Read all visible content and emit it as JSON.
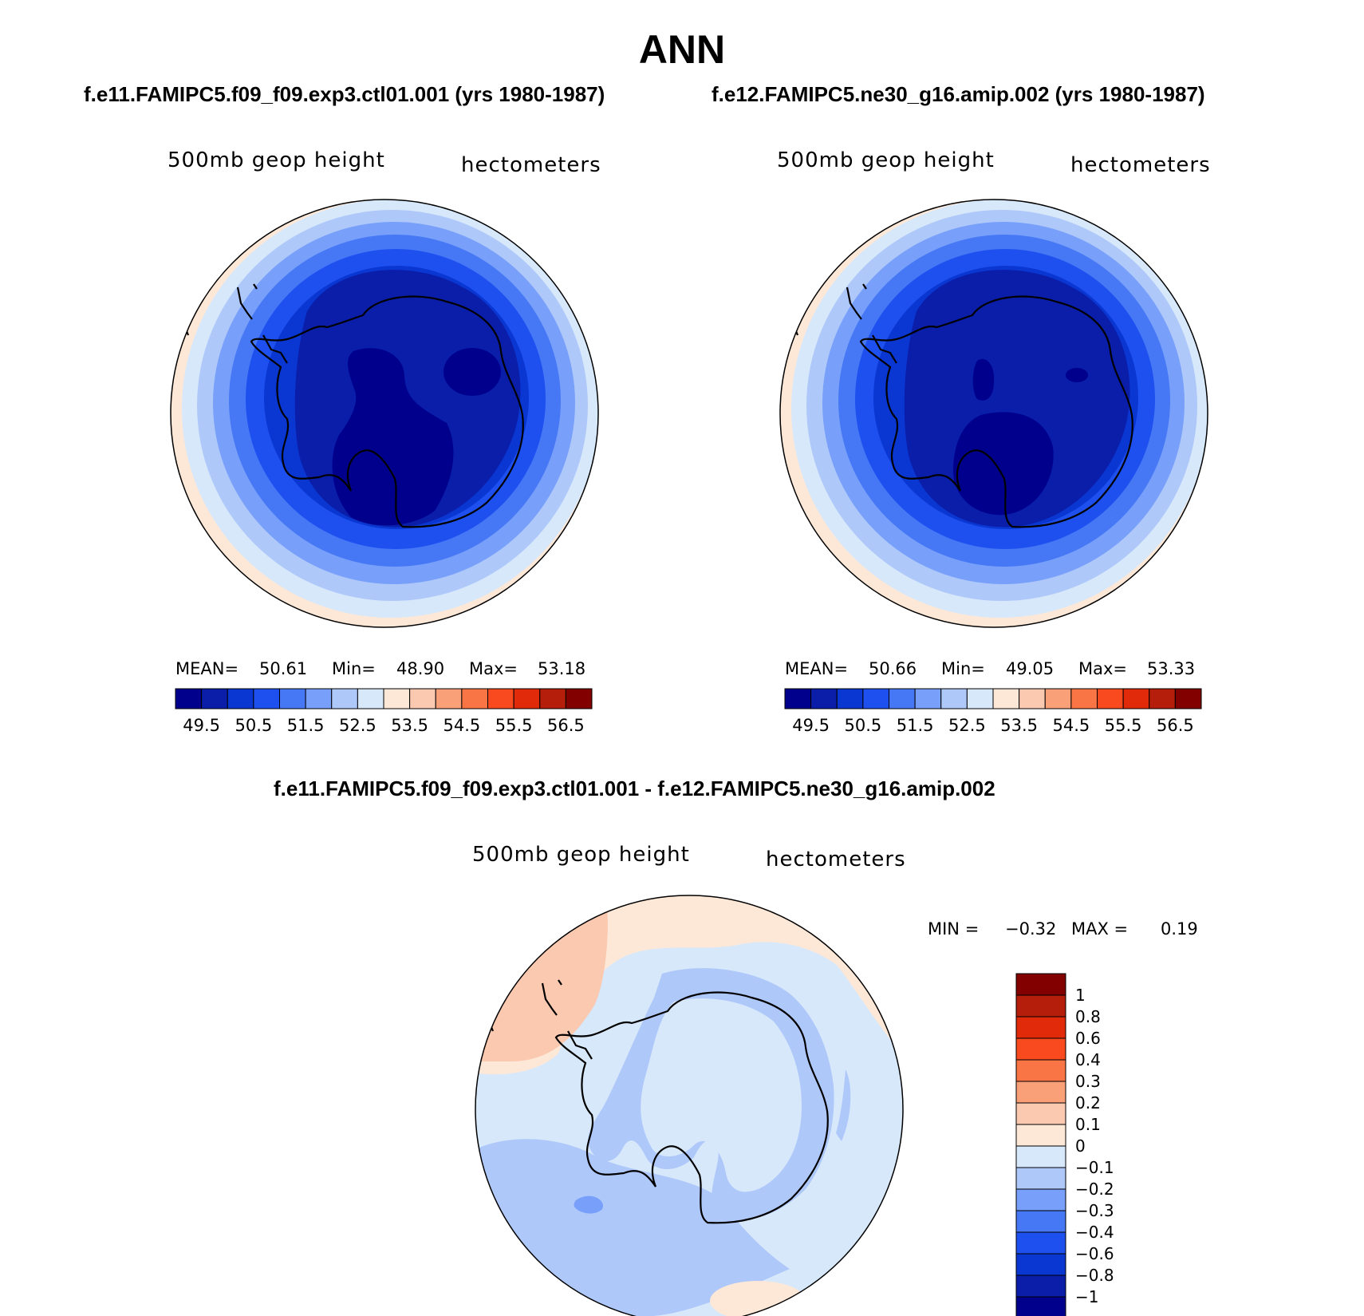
{
  "figure": {
    "title": "ANN"
  },
  "colors": {
    "abs_levels": [
      "#00008c",
      "#0a1eaa",
      "#0a37d2",
      "#1e50f0",
      "#4678f5",
      "#78a0fa",
      "#afc8fa",
      "#d7e8fa",
      "#fde8d8",
      "#fbc8b0",
      "#f9a078",
      "#f97546",
      "#f84a1e",
      "#e02a0a",
      "#b41e0a",
      "#820000"
    ],
    "diff_levels": [
      "#00008c",
      "#0a1eaa",
      "#0a37d2",
      "#1e50f0",
      "#4678f5",
      "#78a0fa",
      "#afc8fa",
      "#d7e8fa",
      "#fde8d8",
      "#fbc8b0",
      "#f9a078",
      "#f97546",
      "#f84a1e",
      "#e02a0a",
      "#b41e0a",
      "#820000"
    ]
  },
  "panels": [
    {
      "case_title": "f.e11.FAMIPC5.f09_f09.exp3.ctl01.001 (yrs 1980-1987)",
      "variable": "500mb geop height",
      "units": "hectometers",
      "mean_label": "MEAN=",
      "mean": "50.61",
      "min_label": "Min=",
      "min": "48.90",
      "max_label": "Max=",
      "max": "53.18",
      "colorbar_labels": [
        "49.5",
        "50.5",
        "51.5",
        "52.5",
        "53.5",
        "54.5",
        "55.5",
        "56.5"
      ]
    },
    {
      "case_title": "f.e12.FAMIPC5.ne30_g16.amip.002 (yrs 1980-1987)",
      "variable": "500mb geop height",
      "units": "hectometers",
      "mean_label": "MEAN=",
      "mean": "50.66",
      "min_label": "Min=",
      "min": "49.05",
      "max_label": "Max=",
      "max": "53.33",
      "colorbar_labels": [
        "49.5",
        "50.5",
        "51.5",
        "52.5",
        "53.5",
        "54.5",
        "55.5",
        "56.5"
      ]
    }
  ],
  "difference": {
    "title": "f.e11.FAMIPC5.f09_f09.exp3.ctl01.001 - f.e12.FAMIPC5.ne30_g16.amip.002",
    "variable": "500mb geop height",
    "units": "hectometers",
    "min_label": "MIN =",
    "min": "−0.32",
    "max_label": "MAX =",
    "max": "0.19",
    "colorbar_labels": [
      "1",
      "0.8",
      "0.6",
      "0.4",
      "0.3",
      "0.2",
      "0.1",
      "0",
      "−0.1",
      "−0.2",
      "−0.3",
      "−0.4",
      "−0.6",
      "−0.8",
      "−1"
    ]
  }
}
